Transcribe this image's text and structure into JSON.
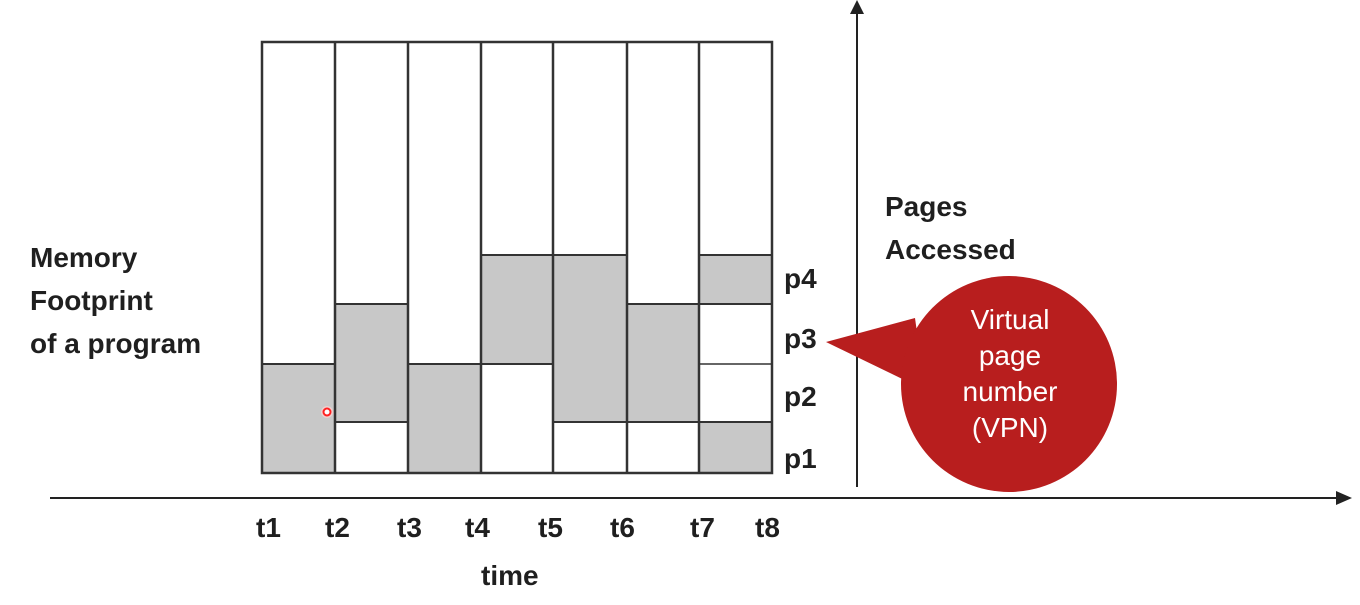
{
  "left_label": {
    "line1": "Memory",
    "line2": "Footprint",
    "line3": "of a program"
  },
  "right_label": {
    "line1": "Pages",
    "line2": "Accessed"
  },
  "x_axis_title": "time",
  "time_ticks": [
    "t1",
    "t2",
    "t3",
    "t4",
    "t5",
    "t6",
    "t7",
    "t8"
  ],
  "page_labels": [
    "p1",
    "p2",
    "p3",
    "p4"
  ],
  "callout": {
    "line1": "Virtual",
    "line2": "page",
    "line3": "number",
    "line4": "(VPN)"
  },
  "colors": {
    "accessed": "#c8c8c8",
    "frame": "#333333",
    "callout": "#b81e1e",
    "pointer": "#ff2020"
  },
  "columns": [
    {
      "interval": "t1-t2",
      "accessed_pages": [
        "p1",
        "p2"
      ]
    },
    {
      "interval": "t2-t3",
      "accessed_pages": [
        "p2",
        "p3"
      ]
    },
    {
      "interval": "t3-t4",
      "accessed_pages": [
        "p1",
        "p2"
      ]
    },
    {
      "interval": "t4-t5",
      "accessed_pages": [
        "p3",
        "p4"
      ]
    },
    {
      "interval": "t5-t6",
      "accessed_pages": [
        "p2",
        "p3",
        "p4"
      ]
    },
    {
      "interval": "t6-t7",
      "accessed_pages": [
        "p2",
        "p3"
      ]
    },
    {
      "interval": "t7-t8",
      "accessed_pages": [
        "p1",
        "p4"
      ]
    }
  ]
}
